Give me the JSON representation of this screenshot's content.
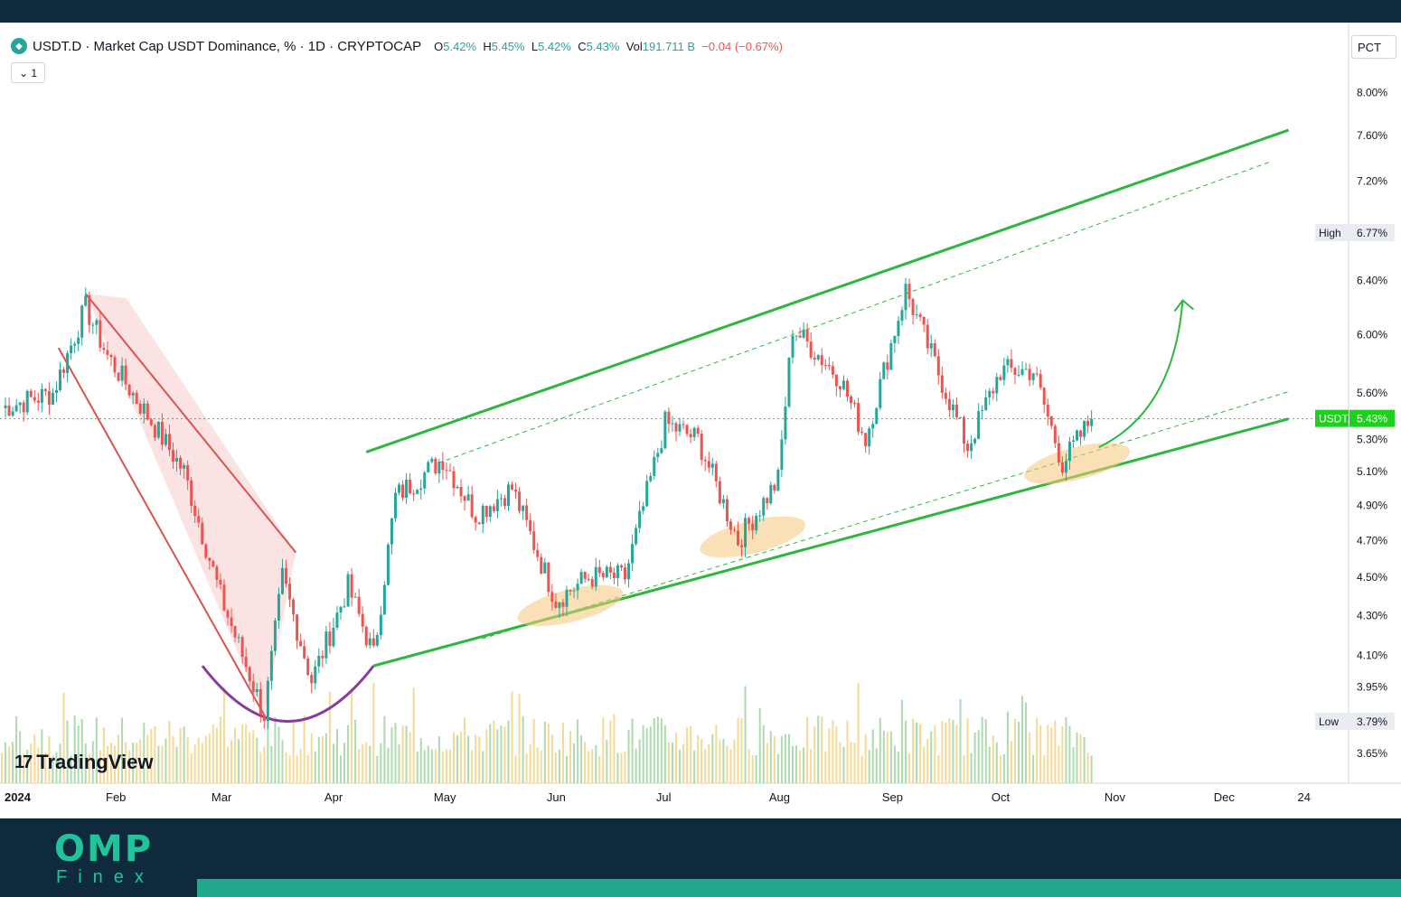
{
  "header": {
    "title": "USDT.D · Market Cap USDT Dominance, % · 1D · CRYPTOCAP",
    "ohlc": [
      {
        "k": "O",
        "v": "5.42%"
      },
      {
        "k": "H",
        "v": "5.45%"
      },
      {
        "k": "L",
        "v": "5.42%"
      },
      {
        "k": "C",
        "v": "5.43%"
      },
      {
        "k": "Vol",
        "v": "191.711 B"
      }
    ],
    "change": "−0.04 (−0.67%)",
    "collapse_label": "1",
    "pct_label": "PCT"
  },
  "colors": {
    "up": "#26a69a",
    "down": "#ef5350",
    "channel": "#2db83d",
    "descending_channel": "#d9534f",
    "arc": "#8a3a9e",
    "highlight": "#f5c77a",
    "current_tag": "#1fd01f",
    "brand": "#1fc49a",
    "background_dark": "#0f2a3d"
  },
  "brand": {
    "name": "OMP",
    "sub": "Finex"
  },
  "tv_logo": "TradingView",
  "chart_data": {
    "type": "candlestick",
    "symbol": "USDT.D",
    "scale": "log",
    "y_axis_labels": [
      "8.00%",
      "7.60%",
      "7.20%",
      "6.40%",
      "6.00%",
      "5.60%",
      "5.30%",
      "5.10%",
      "4.90%",
      "4.70%",
      "4.50%",
      "4.30%",
      "4.10%",
      "3.95%",
      "3.65%"
    ],
    "y_axis_values": [
      8.0,
      7.6,
      7.2,
      6.4,
      6.0,
      5.6,
      5.3,
      5.1,
      4.9,
      4.7,
      4.5,
      4.3,
      4.1,
      3.95,
      3.65
    ],
    "high": {
      "label": "High",
      "value": "6.77%",
      "y": 6.77
    },
    "low": {
      "label": "Low",
      "value": "3.79%",
      "y": 3.79
    },
    "current": {
      "label": "USDT.D",
      "value": "5.43%",
      "y": 5.43
    },
    "x_axis_labels": [
      "2024",
      "Feb",
      "Mar",
      "Apr",
      "May",
      "Jun",
      "Jul",
      "Aug",
      "Sep",
      "Oct",
      "Nov",
      "Dec",
      "24"
    ],
    "x_axis_dates": [
      "2024-01-01",
      "2024-02-01",
      "2024-03-01",
      "2024-04-01",
      "2024-05-01",
      "2024-06-01",
      "2024-07-01",
      "2024-08-01",
      "2024-09-01",
      "2024-10-01",
      "2024-11-01",
      "2024-12-01",
      "2024-12-24"
    ],
    "price_path": [
      [
        "2024-01-01",
        5.5
      ],
      [
        "2024-01-15",
        5.6
      ],
      [
        "2024-01-24",
        6.2
      ],
      [
        "2024-01-30",
        5.85
      ],
      [
        "2024-02-10",
        5.45
      ],
      [
        "2024-02-20",
        5.1
      ],
      [
        "2024-03-01",
        4.4
      ],
      [
        "2024-03-13",
        3.82
      ],
      [
        "2024-03-18",
        4.5
      ],
      [
        "2024-03-26",
        3.98
      ],
      [
        "2024-04-05",
        4.45
      ],
      [
        "2024-04-12",
        4.1
      ],
      [
        "2024-04-18",
        4.95
      ],
      [
        "2024-05-01",
        5.18
      ],
      [
        "2024-05-10",
        4.85
      ],
      [
        "2024-05-20",
        5.0
      ],
      [
        "2024-06-01",
        4.38
      ],
      [
        "2024-06-10",
        4.5
      ],
      [
        "2024-06-20",
        4.5
      ],
      [
        "2024-07-01",
        5.4
      ],
      [
        "2024-07-10",
        5.3
      ],
      [
        "2024-07-21",
        4.7
      ],
      [
        "2024-08-01",
        5.05
      ],
      [
        "2024-08-05",
        6.05
      ],
      [
        "2024-08-18",
        5.7
      ],
      [
        "2024-08-25",
        5.3
      ],
      [
        "2024-09-05",
        6.33
      ],
      [
        "2024-09-22",
        5.25
      ],
      [
        "2024-10-01",
        5.75
      ],
      [
        "2024-10-10",
        5.75
      ],
      [
        "2024-10-18",
        5.15
      ],
      [
        "2024-10-26",
        5.43
      ]
    ],
    "overlays": {
      "ascending_channel_upper": [
        [
          "2024-04-10",
          5.22
        ],
        [
          "2024-12-24",
          7.65
        ]
      ],
      "ascending_channel_lower": [
        [
          "2024-04-12",
          4.05
        ],
        [
          "2024-12-24",
          5.43
        ]
      ],
      "descending_channel": [
        [
          "2024-01-24",
          6.3
        ],
        [
          "2024-03-13",
          3.82
        ]
      ],
      "projection_arrow": [
        [
          "2024-10-28",
          5.25
        ],
        [
          "2024-11-20",
          6.25
        ]
      ]
    },
    "volume_series": "visible bars, unlabeled"
  }
}
